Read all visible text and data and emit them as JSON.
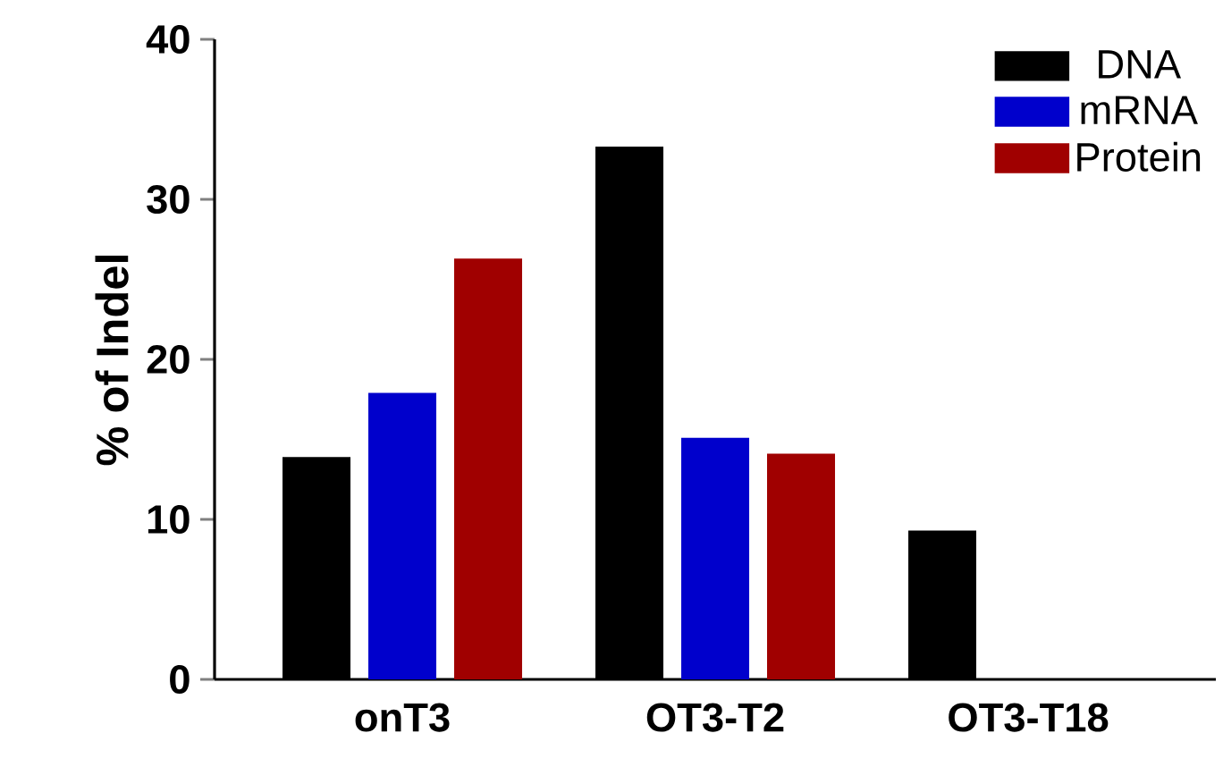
{
  "chart_data": {
    "type": "bar",
    "ylabel": "% of Indel",
    "categories": [
      "onT3",
      "OT3-T2",
      "OT3-T18"
    ],
    "series": [
      {
        "name": "DNA",
        "color": "#000000",
        "values": [
          13.9,
          33.3,
          9.3
        ]
      },
      {
        "name": "mRNA",
        "color": "#0000cc",
        "values": [
          17.9,
          15.1,
          0
        ]
      },
      {
        "name": "Protein",
        "color": "#a00000",
        "values": [
          26.3,
          14.1,
          0
        ]
      }
    ],
    "ylim": [
      0,
      40
    ],
    "yticks": [
      0,
      10,
      20,
      30,
      40
    ],
    "legend": "top right"
  }
}
